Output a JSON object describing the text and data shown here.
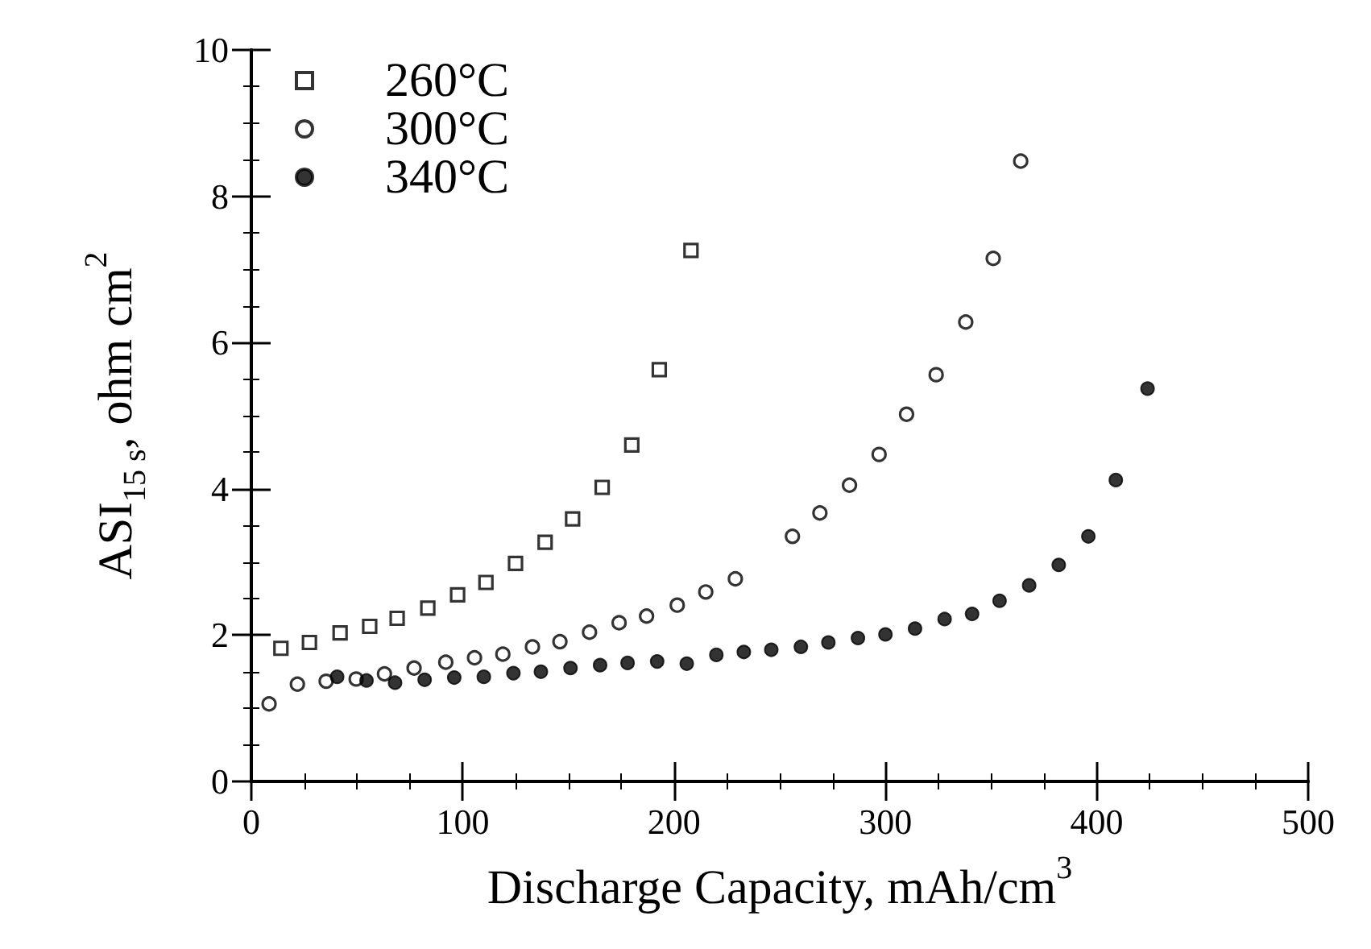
{
  "chart_data": {
    "type": "scatter",
    "xlabel": "Discharge Capacity, mAh/cm$^{3}$",
    "ylabel": "ASI$_{15 s}$, ohm cm$^{2}$",
    "xlim": [
      0,
      500
    ],
    "ylim": [
      0,
      10
    ],
    "xticks": [
      0,
      100,
      200,
      300,
      400,
      500
    ],
    "yticks": [
      0,
      2,
      4,
      6,
      8,
      10
    ],
    "grid": false,
    "legend": "top left",
    "series": [
      {
        "name": "260°C",
        "color": "#000000",
        "marker": "square-open",
        "x": [
          14,
          27.5,
          42,
          56,
          69,
          83.5,
          97.6,
          111,
          125,
          139,
          152,
          166,
          180,
          193,
          208
        ],
        "values": [
          1.82,
          1.9,
          2.03,
          2.12,
          2.23,
          2.37,
          2.55,
          2.72,
          2.98,
          3.27,
          3.59,
          4.02,
          4.6,
          5.63,
          7.26
        ]
      },
      {
        "name": "300°C",
        "color": "#000000",
        "marker": "circle-open",
        "x": [
          8.4,
          21.8,
          35.4,
          49.6,
          63,
          77,
          92,
          105.6,
          119,
          133,
          146,
          160,
          174,
          187,
          201.5,
          215,
          229,
          256,
          269,
          283,
          297,
          310,
          324,
          338,
          351,
          364
        ],
        "values": [
          1.06,
          1.33,
          1.37,
          1.4,
          1.47,
          1.55,
          1.63,
          1.69,
          1.74,
          1.84,
          1.91,
          2.04,
          2.17,
          2.26,
          2.41,
          2.59,
          2.77,
          3.35,
          3.67,
          4.05,
          4.47,
          5.02,
          5.56,
          6.28,
          7.15,
          8.48
        ]
      },
      {
        "name": "340°C",
        "color": "#000000",
        "marker": "circle",
        "x": [
          40.6,
          54.5,
          68,
          82,
          96,
          110,
          124,
          137,
          151,
          165,
          178,
          192,
          206,
          220,
          233,
          246,
          260,
          273,
          287,
          300,
          314,
          328,
          341,
          354,
          368,
          382,
          396,
          409,
          424
        ],
        "values": [
          1.43,
          1.38,
          1.35,
          1.39,
          1.42,
          1.43,
          1.48,
          1.5,
          1.55,
          1.59,
          1.62,
          1.64,
          1.61,
          1.73,
          1.77,
          1.8,
          1.84,
          1.9,
          1.96,
          2.01,
          2.09,
          2.22,
          2.29,
          2.47,
          2.68,
          2.96,
          3.35,
          4.12,
          5.37
        ]
      }
    ]
  }
}
